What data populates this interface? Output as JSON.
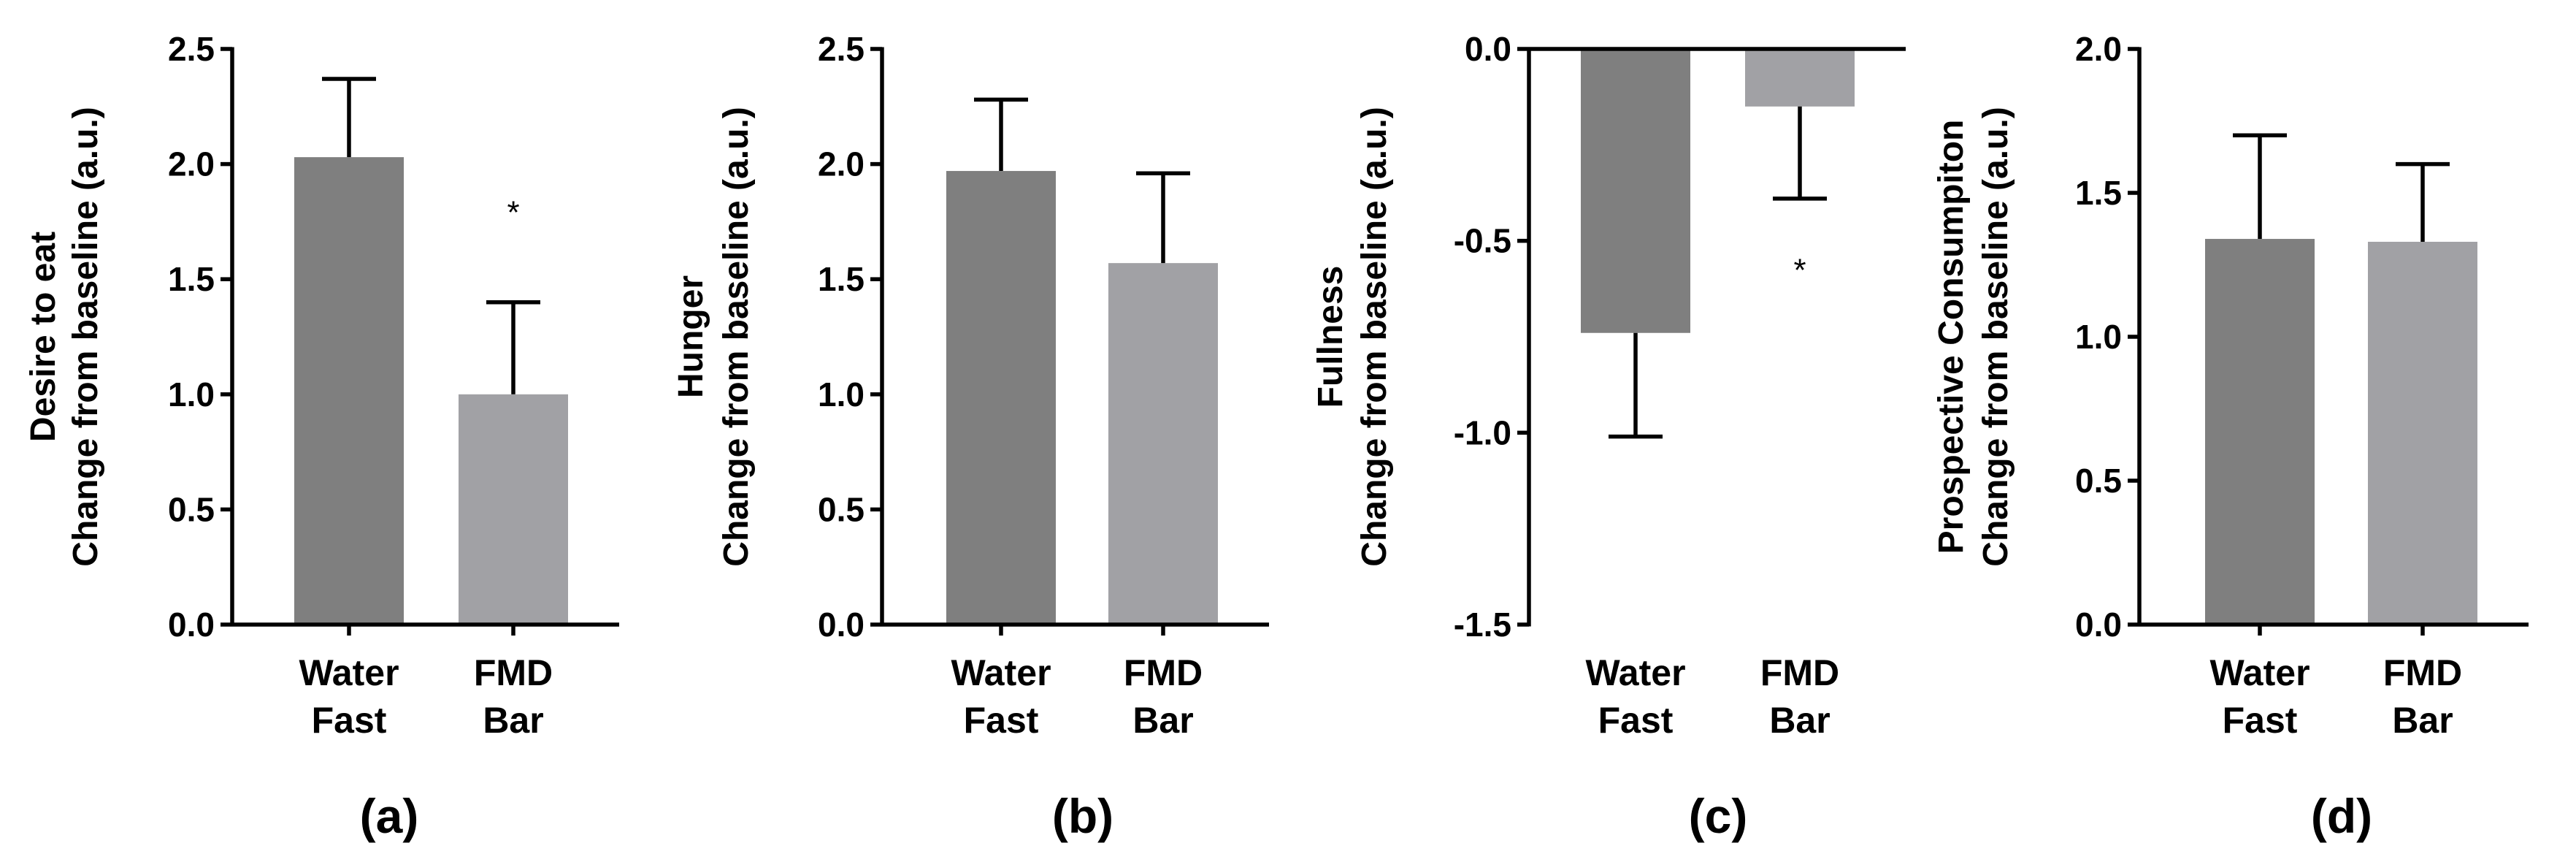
{
  "colors": {
    "water_fast": "#7f7f7f",
    "fmd_bar": "#a1a1a5",
    "axis": "#000000"
  },
  "chart_data": [
    {
      "type": "bar",
      "panel_label": "(a)",
      "ylabel_line1": "Desire to eat",
      "ylabel_line2": "Change from baseline (a.u.)",
      "ylim": [
        0,
        2.5
      ],
      "yticks": [
        0,
        0.5,
        1.0,
        1.5,
        2.0,
        2.5
      ],
      "ytick_labels": [
        "0.0",
        "0.5",
        "1.0",
        "1.5",
        "2.0",
        "2.5"
      ],
      "categories": [
        [
          "Water",
          "Fast"
        ],
        [
          "FMD",
          "Bar"
        ]
      ],
      "values": [
        2.03,
        1.0
      ],
      "error_tops": [
        2.37,
        1.4
      ],
      "significance": [
        "",
        "*"
      ],
      "sig_positions": [
        null,
        1.8
      ]
    },
    {
      "type": "bar",
      "panel_label": "(b)",
      "ylabel_line1": "Hunger",
      "ylabel_line2": "Change from baseline (a.u.)",
      "ylim": [
        0,
        2.5
      ],
      "yticks": [
        0,
        0.5,
        1.0,
        1.5,
        2.0,
        2.5
      ],
      "ytick_labels": [
        "0.0",
        "0.5",
        "1.0",
        "1.5",
        "2.0",
        "2.5"
      ],
      "categories": [
        [
          "Water",
          "Fast"
        ],
        [
          "FMD",
          "Bar"
        ]
      ],
      "values": [
        1.97,
        1.57
      ],
      "error_tops": [
        2.28,
        1.96
      ],
      "significance": [
        "",
        ""
      ],
      "sig_positions": [
        null,
        null
      ]
    },
    {
      "type": "bar",
      "panel_label": "(c)",
      "ylabel_line1": "Fullness",
      "ylabel_line2": "Change from baseline (a.u.)",
      "ylim": [
        -1.5,
        0
      ],
      "yticks": [
        -1.5,
        -1.0,
        -0.5,
        0
      ],
      "ytick_labels": [
        "-1.5",
        "-1.0",
        "-0.5",
        "0.0"
      ],
      "categories": [
        [
          "Water",
          "Fast"
        ],
        [
          "FMD",
          "Bar"
        ]
      ],
      "values": [
        -0.74,
        -0.15
      ],
      "error_tops": [
        -1.01,
        -0.39
      ],
      "significance": [
        "",
        "*"
      ],
      "sig_positions": [
        null,
        -0.57
      ]
    },
    {
      "type": "bar",
      "panel_label": "(d)",
      "ylabel_line1": "Prospective Consumpiton",
      "ylabel_line2": "Change from baseline (a.u.)",
      "ylim": [
        0,
        2.0
      ],
      "yticks": [
        0,
        0.5,
        1.0,
        1.5,
        2.0
      ],
      "ytick_labels": [
        "0.0",
        "0.5",
        "1.0",
        "1.5",
        "2.0"
      ],
      "categories": [
        [
          "Water",
          "Fast"
        ],
        [
          "FMD",
          "Bar"
        ]
      ],
      "values": [
        1.34,
        1.33
      ],
      "error_tops": [
        1.7,
        1.6
      ],
      "significance": [
        "",
        ""
      ],
      "sig_positions": [
        null,
        null
      ]
    }
  ]
}
